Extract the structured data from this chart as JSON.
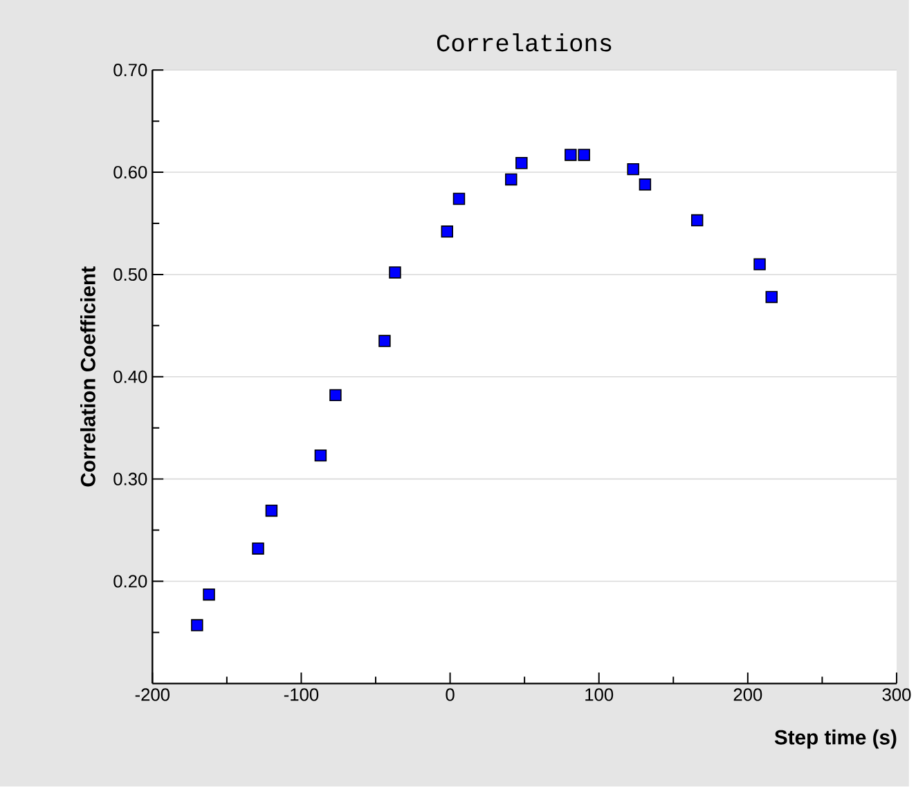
{
  "chart_data": {
    "type": "scatter",
    "title": "Correlations",
    "xlabel": "Step time (s)",
    "ylabel": "Correlation Coefficient",
    "x": [
      -170,
      -162,
      -129,
      -120,
      -87,
      -77,
      -44,
      -37,
      -2,
      6,
      41,
      48,
      81,
      90,
      123,
      131,
      166,
      208,
      216
    ],
    "series": [
      {
        "color": "#0000ff",
        "values": [
          0.157,
          0.187,
          0.232,
          0.269,
          0.323,
          0.382,
          0.435,
          0.502,
          0.542,
          0.574,
          0.593,
          0.609,
          0.617,
          0.617,
          0.603,
          0.588,
          0.553,
          0.51,
          0.478
        ]
      }
    ],
    "xlim": [
      -200,
      300
    ],
    "ylim": [
      0.1,
      0.7
    ],
    "xticks": [
      -200,
      {
        "value": -150,
        "label": null
      },
      -100,
      {
        "value": -50,
        "label": null
      },
      0,
      {
        "value": 50,
        "label": null
      },
      100,
      {
        "value": 150,
        "label": null
      },
      200,
      {
        "value": 250,
        "label": null
      },
      300
    ],
    "yticks": [
      {
        "value": 0.15,
        "label": null
      },
      {
        "value": 0.2,
        "label": "0.20"
      },
      {
        "value": 0.25,
        "label": null
      },
      {
        "value": 0.3,
        "label": "0.30"
      },
      {
        "value": 0.35,
        "label": null
      },
      {
        "value": 0.4,
        "label": "0.40"
      },
      {
        "value": 0.45,
        "label": null
      },
      {
        "value": 0.5,
        "label": "0.50"
      },
      {
        "value": 0.55,
        "label": null
      },
      {
        "value": 0.6,
        "label": "0.60"
      },
      {
        "value": 0.65,
        "label": null
      },
      {
        "value": 0.7,
        "label": "0.70"
      }
    ],
    "grid": "y",
    "marker": "square"
  }
}
